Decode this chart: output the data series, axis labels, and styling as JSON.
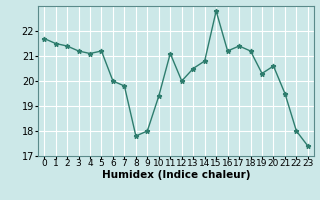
{
  "x": [
    0,
    1,
    2,
    3,
    4,
    5,
    6,
    7,
    8,
    9,
    10,
    11,
    12,
    13,
    14,
    15,
    16,
    17,
    18,
    19,
    20,
    21,
    22,
    23
  ],
  "y": [
    21.7,
    21.5,
    21.4,
    21.2,
    21.1,
    21.2,
    20.0,
    19.8,
    17.8,
    18.0,
    19.4,
    21.1,
    20.0,
    20.5,
    20.8,
    22.8,
    21.2,
    21.4,
    21.2,
    20.3,
    20.6,
    19.5,
    18.0,
    17.4
  ],
  "line_color": "#2e7d6e",
  "marker": "*",
  "marker_size": 3.5,
  "bg_color": "#cce8e8",
  "grid_color": "#ffffff",
  "xlabel": "Humidex (Indice chaleur)",
  "ylim": [
    17,
    23
  ],
  "xlim": [
    -0.5,
    23.5
  ],
  "yticks": [
    17,
    18,
    19,
    20,
    21,
    22
  ],
  "xticks": [
    0,
    1,
    2,
    3,
    4,
    5,
    6,
    7,
    8,
    9,
    10,
    11,
    12,
    13,
    14,
    15,
    16,
    17,
    18,
    19,
    20,
    21,
    22,
    23
  ],
  "linewidth": 1.0,
  "xlabel_fontsize": 7.5,
  "tick_fontsize": 6.5,
  "ytick_fontsize": 7
}
